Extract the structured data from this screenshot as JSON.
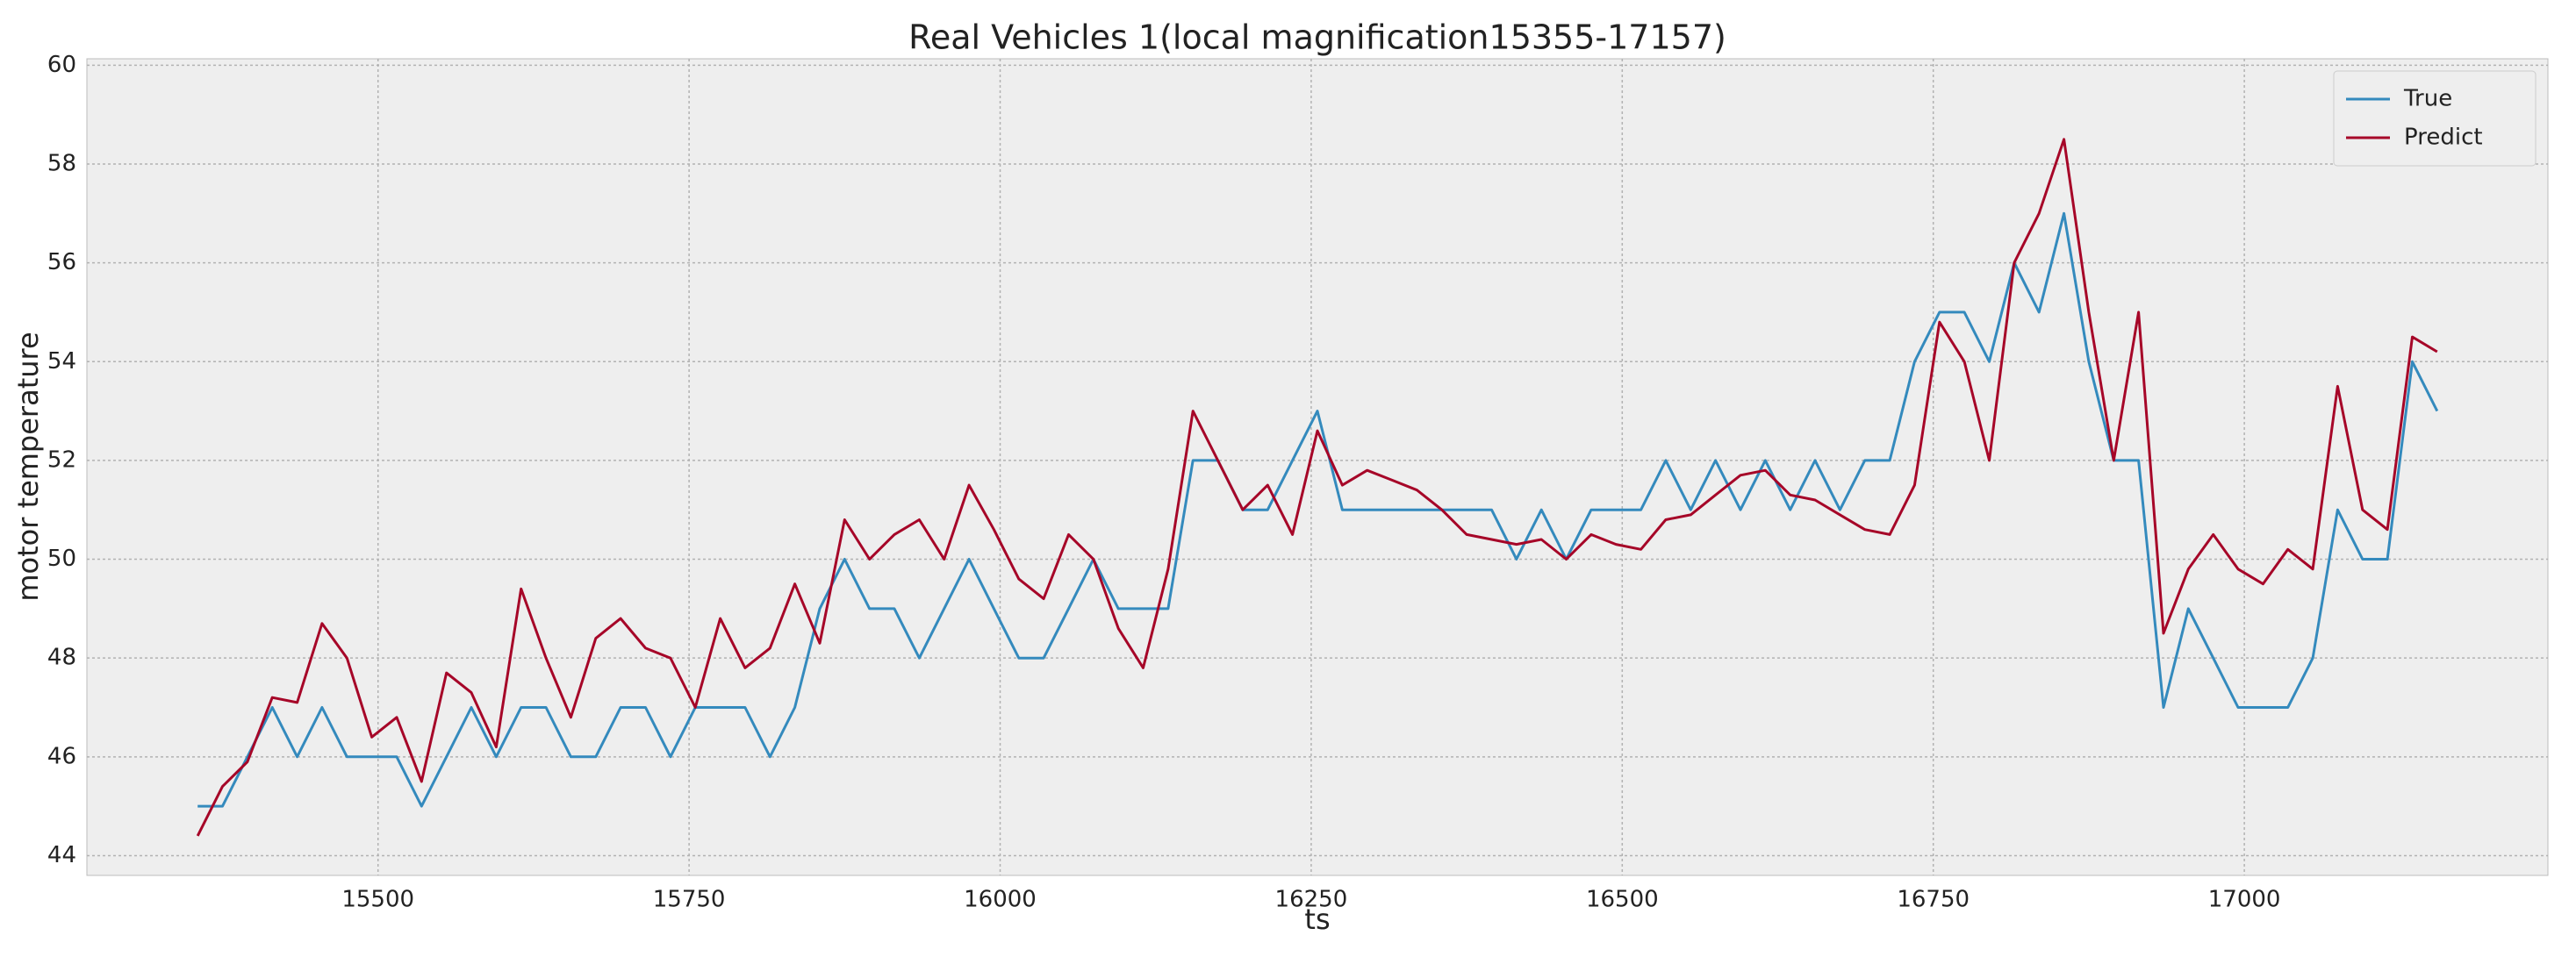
{
  "chart_data": {
    "type": "line",
    "title": "Real Vehicles 1(local magnification15355-17157)",
    "x_label": "ts",
    "y_label": "motor temperature",
    "x": [
      15355,
      15375,
      15395,
      15415,
      15435,
      15455,
      15475,
      15495,
      15515,
      15535,
      15555,
      15575,
      15595,
      15615,
      15635,
      15655,
      15675,
      15695,
      15715,
      15735,
      15755,
      15775,
      15795,
      15815,
      15835,
      15855,
      15875,
      15895,
      15915,
      15935,
      15955,
      15975,
      15995,
      16015,
      16035,
      16055,
      16075,
      16095,
      16115,
      16135,
      16155,
      16175,
      16195,
      16215,
      16235,
      16255,
      16275,
      16295,
      16315,
      16335,
      16355,
      16375,
      16395,
      16415,
      16435,
      16455,
      16475,
      16495,
      16515,
      16535,
      16555,
      16575,
      16595,
      16615,
      16635,
      16655,
      16675,
      16695,
      16715,
      16735,
      16755,
      16775,
      16795,
      16815,
      16835,
      16855,
      16875,
      16895,
      16915,
      16935,
      16955,
      16975,
      16995,
      17015,
      17035,
      17055,
      17075,
      17095,
      17115,
      17135,
      17155
    ],
    "series": [
      {
        "name": "True",
        "color": "#348ABD",
        "values": [
          45,
          45,
          46,
          47,
          46,
          47,
          46,
          46,
          46,
          45,
          46,
          47,
          46,
          47,
          47,
          46,
          46,
          47,
          47,
          46,
          47,
          47,
          47,
          46,
          47,
          49,
          50,
          49,
          49,
          48,
          49,
          50,
          49,
          48,
          48,
          49,
          50,
          49,
          49,
          49,
          52,
          52,
          51,
          51,
          52,
          53,
          51,
          51,
          51,
          51,
          51,
          51,
          51,
          50,
          51,
          50,
          51,
          51,
          51,
          52,
          51,
          52,
          51,
          52,
          51,
          52,
          51,
          52,
          52,
          54,
          55,
          55,
          54,
          56,
          55,
          57,
          54,
          52,
          52,
          47,
          49,
          48,
          47,
          47,
          47,
          48,
          51,
          50,
          50,
          54,
          53
        ]
      },
      {
        "name": "Predict",
        "color": "#A60628",
        "values": [
          44.4,
          45.4,
          45.9,
          47.2,
          47.1,
          48.7,
          48.0,
          46.4,
          46.8,
          45.5,
          47.7,
          47.3,
          46.2,
          49.4,
          48.0,
          46.8,
          48.4,
          48.8,
          48.2,
          48.0,
          47.0,
          48.8,
          47.8,
          48.2,
          49.5,
          48.3,
          50.8,
          50.0,
          50.5,
          50.8,
          50.0,
          51.5,
          50.6,
          49.6,
          49.2,
          50.5,
          50.0,
          48.6,
          47.8,
          49.8,
          53.0,
          52.0,
          51.0,
          51.5,
          50.5,
          52.6,
          51.5,
          51.8,
          51.6,
          51.4,
          51.0,
          50.5,
          50.4,
          50.3,
          50.4,
          50.0,
          50.5,
          50.3,
          50.2,
          50.8,
          50.9,
          51.3,
          51.7,
          51.8,
          51.3,
          51.2,
          50.9,
          50.6,
          50.5,
          51.5,
          54.8,
          54.0,
          52.0,
          56.0,
          57.0,
          58.5,
          55.0,
          52.0,
          55.0,
          48.5,
          49.8,
          50.5,
          49.8,
          49.5,
          50.2,
          49.8,
          53.5,
          51.0,
          50.6,
          54.5,
          54.2
        ]
      }
    ],
    "xlim": [
      15266,
      17244
    ],
    "xticks": [
      15500,
      15750,
      16000,
      16250,
      16500,
      16750,
      17000
    ],
    "ylim": [
      43.6,
      60.13
    ],
    "yticks": [
      44,
      46,
      48,
      50,
      52,
      54,
      56,
      58,
      60
    ],
    "grid": true,
    "legend": "upper right"
  }
}
